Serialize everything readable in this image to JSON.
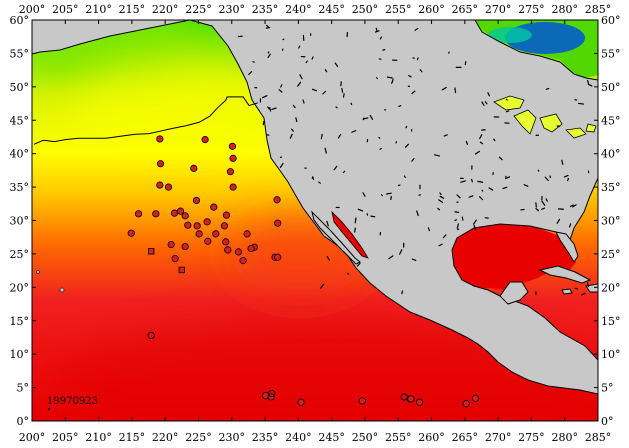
{
  "map": {
    "date_label": "19970923",
    "x_axis": {
      "min": 200,
      "max": 285,
      "step": 5,
      "tick_labels": [
        "200°",
        "205°",
        "210°",
        "215°",
        "220°",
        "225°",
        "230°",
        "235°",
        "240°",
        "245°",
        "250°",
        "255°",
        "260°",
        "265°",
        "270°",
        "275°",
        "280°",
        "285°"
      ]
    },
    "y_axis": {
      "min": 0,
      "max": 60,
      "step": 5,
      "tick_labels": [
        "0°",
        "5°",
        "10°",
        "15°",
        "20°",
        "25°",
        "30°",
        "35°",
        "40°",
        "45°",
        "50°",
        "55°",
        "60°"
      ]
    },
    "colors": {
      "land": "#c8c8c8",
      "coast": "#000000",
      "sst_warm": "#e80000",
      "sst_hot": "#f02020",
      "sst_orange": "#ff6a00",
      "sst_yellow": "#ffff00",
      "sst_green": "#52e000",
      "sst_blue": "#0055d8",
      "marker": "#d42020"
    }
  },
  "chart_data": {
    "type": "scatter",
    "title": "",
    "xlabel": "",
    "ylabel": "",
    "xlim": [
      200,
      285
    ],
    "ylim": [
      0,
      60
    ],
    "grid": false,
    "series": [
      {
        "marker": "filled-circle",
        "points": [
          [
            219.2,
            42.2
          ],
          [
            226.0,
            42.1
          ],
          [
            230.1,
            41.1
          ],
          [
            230.2,
            39.3
          ],
          [
            219.3,
            38.5
          ],
          [
            224.3,
            37.8
          ],
          [
            229.8,
            37.3
          ],
          [
            219.2,
            35.3
          ],
          [
            220.5,
            35.0
          ],
          [
            230.2,
            35.0
          ],
          [
            236.8,
            33.1
          ],
          [
            224.7,
            33.0
          ],
          [
            227.3,
            32.0
          ],
          [
            216.0,
            31.0
          ],
          [
            218.6,
            31.0
          ],
          [
            221.4,
            31.1
          ],
          [
            222.3,
            31.4
          ],
          [
            223.0,
            30.7
          ],
          [
            229.2,
            30.8
          ],
          [
            226.3,
            29.8
          ],
          [
            236.9,
            29.6
          ],
          [
            214.9,
            28.1
          ],
          [
            224.8,
            29.2
          ],
          [
            223.4,
            29.3
          ],
          [
            228.9,
            29.2
          ],
          [
            225.1,
            28.0
          ],
          [
            227.6,
            28.0
          ],
          [
            232.3,
            28.0
          ],
          [
            226.4,
            26.9
          ],
          [
            229.1,
            26.8
          ],
          [
            220.9,
            26.4
          ],
          [
            223.0,
            26.1
          ],
          [
            233.4,
            26.0
          ],
          [
            231.0,
            25.3
          ],
          [
            229.4,
            25.6
          ],
          [
            232.9,
            25.8
          ],
          [
            236.5,
            24.5
          ],
          [
            221.5,
            24.3
          ],
          [
            231.7,
            24.0
          ],
          [
            236.9,
            24.5
          ],
          [
            235.1,
            3.8
          ],
          [
            235.9,
            3.6
          ],
          [
            240.4,
            2.8
          ],
          [
            249.6,
            3.0
          ],
          [
            256.8,
            3.3
          ],
          [
            256.9,
            3.3
          ],
          [
            258.2,
            2.8
          ],
          [
            265.2,
            2.6
          ],
          [
            266.6,
            3.4
          ]
        ]
      },
      {
        "marker": "open-circle",
        "points": [
          [
            217.9,
            12.8
          ],
          [
            236.0,
            4.1
          ],
          [
            255.9,
            3.6
          ]
        ]
      },
      {
        "marker": "filled-square",
        "points": [
          [
            217.9,
            25.4
          ],
          [
            222.5,
            22.6
          ]
        ]
      }
    ],
    "contours": [
      {
        "name": "sst-contour-line",
        "x": [
          200.3,
          201.7,
          203.4,
          205.0,
          207.0,
          209.1,
          211.1,
          213.3,
          215.5,
          217.6,
          219.4,
          221.2,
          223.2,
          225.1,
          226.7,
          227.9,
          229.1,
          229.3,
          230.1,
          231.7,
          232.6,
          233.9
        ],
        "y": [
          41.4,
          42.0,
          41.8,
          42.1,
          42.3,
          42.3,
          42.3,
          42.6,
          42.9,
          43.0,
          43.4,
          43.8,
          44.2,
          44.7,
          45.6,
          46.9,
          48.0,
          48.5,
          48.5,
          48.5,
          47.2,
          47.6
        ]
      }
    ]
  }
}
